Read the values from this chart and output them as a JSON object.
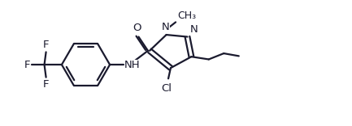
{
  "background": "#ffffff",
  "line_color": "#1a1a2e",
  "line_width": 1.6,
  "fig_width": 4.33,
  "fig_height": 1.56,
  "dpi": 100,
  "xlim": [
    0,
    10.5
  ],
  "ylim": [
    0,
    3.6
  ]
}
